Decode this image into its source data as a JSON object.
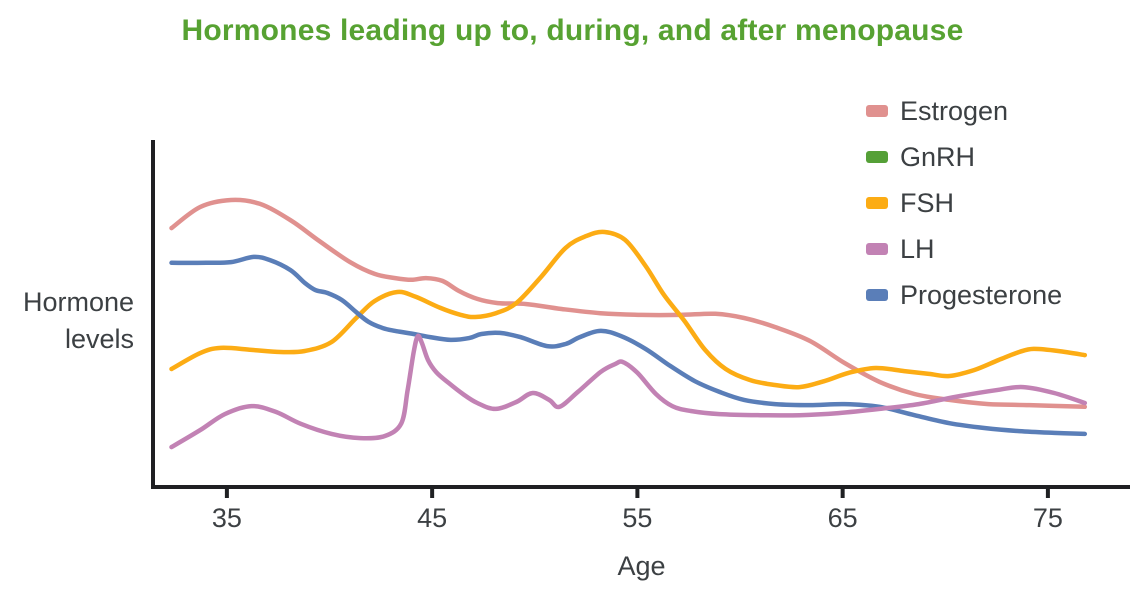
{
  "title": "Hormones leading up to, during, and after menopause",
  "title_color": "#57a232",
  "xlabel": "Age",
  "ylabel_lines": [
    "Hormone",
    "levels"
  ],
  "text_color": "#3c4043",
  "axis_color": "#1f2023",
  "chart_data": {
    "type": "line",
    "title": "Hormones leading up to, during, and after menopause",
    "xlabel": "Age",
    "ylabel": "Hormone levels",
    "x_ticks": [
      35,
      45,
      55,
      65,
      75
    ],
    "xlim": [
      31.4,
      79
    ],
    "ylim": [
      0,
      100
    ],
    "grid": false,
    "legend_position": "top-right",
    "y_units": "unlabeled relative hormone level (0-100 = fraction of axis height)",
    "draw_order": [
      "Estrogen",
      "GnRH",
      "FSH",
      "Progesterone",
      "LH"
    ],
    "series": [
      {
        "name": "Estrogen",
        "color": "#e0918f",
        "points": [
          [
            32.3,
            74.6
          ],
          [
            33.7,
            80.7
          ],
          [
            35.2,
            82.7
          ],
          [
            36.6,
            81.6
          ],
          [
            38.1,
            76.9
          ],
          [
            39.5,
            70.9
          ],
          [
            41.0,
            64.8
          ],
          [
            42.2,
            61.4
          ],
          [
            43.2,
            60.2
          ],
          [
            44.0,
            59.7
          ],
          [
            44.7,
            60.2
          ],
          [
            45.5,
            59.4
          ],
          [
            46.3,
            56.5
          ],
          [
            47.2,
            54.2
          ],
          [
            48.2,
            53.0
          ],
          [
            49.6,
            52.7
          ],
          [
            51.3,
            51.3
          ],
          [
            53.2,
            50.1
          ],
          [
            55.2,
            49.6
          ],
          [
            57.1,
            49.6
          ],
          [
            58.8,
            49.9
          ],
          [
            60.2,
            48.7
          ],
          [
            61.7,
            46.1
          ],
          [
            63.4,
            42.1
          ],
          [
            65.1,
            35.7
          ],
          [
            66.8,
            30.3
          ],
          [
            68.5,
            26.8
          ],
          [
            70.2,
            25.1
          ],
          [
            72.1,
            23.9
          ],
          [
            74.1,
            23.6
          ],
          [
            76.8,
            23.1
          ]
        ]
      },
      {
        "name": "GnRH",
        "color": "#55a037",
        "points": [],
        "note": "legend entry only - no curve visible in plot"
      },
      {
        "name": "FSH",
        "color": "#fcac14",
        "points": [
          [
            32.3,
            34.0
          ],
          [
            33.7,
            38.6
          ],
          [
            34.7,
            40.1
          ],
          [
            36.2,
            39.5
          ],
          [
            37.6,
            38.9
          ],
          [
            38.8,
            39.2
          ],
          [
            40.1,
            41.8
          ],
          [
            41.3,
            48.7
          ],
          [
            42.2,
            53.6
          ],
          [
            43.3,
            56.2
          ],
          [
            44.2,
            54.8
          ],
          [
            45.4,
            51.6
          ],
          [
            46.4,
            49.6
          ],
          [
            47.1,
            49.0
          ],
          [
            48.1,
            50.1
          ],
          [
            49.1,
            53.0
          ],
          [
            50.3,
            60.5
          ],
          [
            51.5,
            68.9
          ],
          [
            52.5,
            72.3
          ],
          [
            53.4,
            73.5
          ],
          [
            54.4,
            71.2
          ],
          [
            55.4,
            63.7
          ],
          [
            56.3,
            55.3
          ],
          [
            57.3,
            47.8
          ],
          [
            58.3,
            39.5
          ],
          [
            59.3,
            34.0
          ],
          [
            60.5,
            30.8
          ],
          [
            61.7,
            29.4
          ],
          [
            62.9,
            28.8
          ],
          [
            64.1,
            30.5
          ],
          [
            65.3,
            32.9
          ],
          [
            66.6,
            34.3
          ],
          [
            68.0,
            33.4
          ],
          [
            69.2,
            32.6
          ],
          [
            70.2,
            32.0
          ],
          [
            71.4,
            33.7
          ],
          [
            72.6,
            36.6
          ],
          [
            73.6,
            38.9
          ],
          [
            74.3,
            39.8
          ],
          [
            75.5,
            39.2
          ],
          [
            76.8,
            38.0
          ]
        ]
      },
      {
        "name": "LH",
        "color": "#c282b4",
        "points": [
          [
            32.3,
            11.5
          ],
          [
            33.7,
            16.4
          ],
          [
            34.9,
            21.0
          ],
          [
            36.2,
            23.3
          ],
          [
            37.4,
            21.6
          ],
          [
            38.6,
            18.2
          ],
          [
            40.1,
            15.3
          ],
          [
            41.5,
            14.1
          ],
          [
            42.7,
            14.7
          ],
          [
            43.5,
            18.4
          ],
          [
            43.8,
            27.7
          ],
          [
            44.1,
            38.9
          ],
          [
            44.3,
            43.5
          ],
          [
            44.5,
            41.5
          ],
          [
            44.8,
            36.6
          ],
          [
            45.2,
            33.1
          ],
          [
            45.8,
            30.0
          ],
          [
            46.5,
            26.8
          ],
          [
            47.2,
            24.2
          ],
          [
            48.1,
            22.5
          ],
          [
            49.1,
            24.5
          ],
          [
            49.9,
            27.1
          ],
          [
            50.7,
            25.1
          ],
          [
            51.2,
            23.1
          ],
          [
            52.1,
            27.4
          ],
          [
            53.2,
            33.1
          ],
          [
            53.9,
            35.4
          ],
          [
            54.3,
            36.0
          ],
          [
            55.0,
            32.9
          ],
          [
            55.9,
            26.8
          ],
          [
            56.7,
            23.3
          ],
          [
            57.6,
            21.9
          ],
          [
            59.0,
            21.0
          ],
          [
            61.0,
            20.7
          ],
          [
            62.9,
            20.7
          ],
          [
            64.8,
            21.3
          ],
          [
            66.8,
            22.5
          ],
          [
            68.7,
            23.9
          ],
          [
            70.7,
            26.2
          ],
          [
            72.6,
            28.0
          ],
          [
            73.8,
            28.8
          ],
          [
            75.3,
            27.1
          ],
          [
            76.8,
            24.2
          ]
        ]
      },
      {
        "name": "Progesterone",
        "color": "#5a7eb8",
        "points": [
          [
            32.3,
            64.6
          ],
          [
            34.0,
            64.6
          ],
          [
            35.2,
            64.8
          ],
          [
            36.3,
            66.3
          ],
          [
            37.1,
            65.4
          ],
          [
            38.1,
            62.5
          ],
          [
            38.8,
            58.8
          ],
          [
            39.3,
            56.8
          ],
          [
            39.9,
            55.9
          ],
          [
            40.6,
            53.9
          ],
          [
            41.3,
            50.4
          ],
          [
            41.9,
            47.6
          ],
          [
            42.6,
            45.8
          ],
          [
            43.2,
            45.0
          ],
          [
            44.1,
            44.1
          ],
          [
            44.9,
            43.2
          ],
          [
            45.9,
            42.4
          ],
          [
            46.8,
            42.9
          ],
          [
            47.4,
            44.1
          ],
          [
            48.3,
            44.4
          ],
          [
            49.3,
            43.2
          ],
          [
            50.6,
            40.6
          ],
          [
            51.5,
            41.2
          ],
          [
            52.2,
            43.2
          ],
          [
            53.2,
            45.0
          ],
          [
            54.2,
            43.5
          ],
          [
            55.4,
            39.8
          ],
          [
            56.6,
            34.9
          ],
          [
            57.8,
            30.5
          ],
          [
            59.0,
            27.4
          ],
          [
            60.2,
            25.1
          ],
          [
            61.7,
            23.9
          ],
          [
            63.4,
            23.6
          ],
          [
            65.1,
            23.9
          ],
          [
            66.8,
            23.1
          ],
          [
            68.5,
            20.7
          ],
          [
            70.2,
            18.4
          ],
          [
            71.9,
            17.0
          ],
          [
            73.6,
            16.1
          ],
          [
            75.3,
            15.6
          ],
          [
            76.8,
            15.3
          ]
        ]
      }
    ]
  }
}
